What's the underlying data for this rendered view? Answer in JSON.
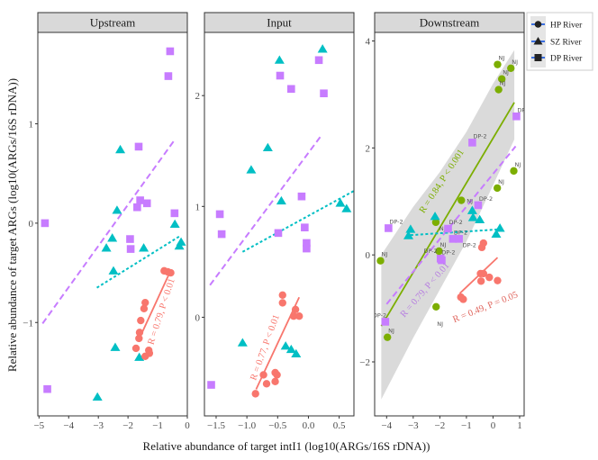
{
  "chart_data": {
    "type": "scatter",
    "xlabel": "Relative abundance of target intI1 (log10(ARGs/16S rDNA))",
    "ylabel": "Relative abundance of target ARGs (log10(ARGs/16S rDNA))",
    "grid": false,
    "legend": {
      "placement": "right",
      "entries": [
        {
          "name": "HP River",
          "marker": "circle"
        },
        {
          "name": "SZ River",
          "marker": "triangle"
        },
        {
          "name": "DP River",
          "marker": "square"
        }
      ]
    },
    "colors": {
      "HP River": "#f8766d",
      "SZ River": "#00bfc4",
      "DP River": "#c77cff",
      "NJ": "#7cae00",
      "ribbon": "#d3d3d3"
    },
    "panels": [
      {
        "title": "Upstream",
        "xlim": [
          -5.04,
          0.0
        ],
        "ylim": [
          -1.94,
          1.92
        ],
        "xticks": [
          "-5",
          "-4",
          "-3",
          "-2",
          "-1",
          "0"
        ],
        "yticks": [
          "-1",
          "0",
          "1"
        ],
        "annotations": [
          {
            "text": "R = 0.79, P < 0.01",
            "color": "#f8766d"
          }
        ],
        "series": [
          {
            "group": "DP River",
            "marker": "square",
            "color": "#c77cff",
            "fit_style": "dashed",
            "points": [
              [
                -0.58,
                1.73
              ],
              [
                -0.64,
                1.48
              ],
              [
                -1.64,
                0.77
              ],
              [
                -1.59,
                0.23
              ],
              [
                -1.36,
                0.2
              ],
              [
                -1.69,
                0.16
              ],
              [
                -0.43,
                0.1
              ],
              [
                -4.8,
                0.0
              ],
              [
                -1.93,
                -0.16
              ],
              [
                -1.91,
                -0.26
              ],
              [
                -4.72,
                -1.67
              ]
            ],
            "fit": [
              [
                -4.88,
                -1.01
              ],
              [
                -0.4,
                0.85
              ]
            ]
          },
          {
            "group": "SZ River",
            "marker": "triangle",
            "color": "#00bfc4",
            "fit_style": "dotted",
            "points": [
              [
                -2.26,
                0.74
              ],
              [
                -2.37,
                0.13
              ],
              [
                -0.42,
                -0.01
              ],
              [
                -2.53,
                -0.15
              ],
              [
                -0.21,
                -0.19
              ],
              [
                -2.73,
                -0.25
              ],
              [
                -1.47,
                -0.25
              ],
              [
                -0.27,
                -0.23
              ],
              [
                -2.49,
                -0.48
              ],
              [
                -2.43,
                -1.25
              ],
              [
                -1.62,
                -1.35
              ],
              [
                -3.03,
                -1.75
              ]
            ],
            "fit": [
              [
                -3.05,
                -0.65
              ],
              [
                -0.25,
                -0.13
              ]
            ]
          },
          {
            "group": "HP River",
            "marker": "circle",
            "color": "#f8766d",
            "fit_style": "solid",
            "points": [
              [
                -0.78,
                -0.48
              ],
              [
                -0.66,
                -0.49
              ],
              [
                -0.56,
                -0.5
              ],
              [
                -1.42,
                -0.8
              ],
              [
                -1.46,
                -0.86
              ],
              [
                -1.57,
                -0.98
              ],
              [
                -1.61,
                -1.1
              ],
              [
                -1.63,
                -1.16
              ],
              [
                -1.73,
                -1.26
              ],
              [
                -1.3,
                -1.28
              ],
              [
                -1.28,
                -1.31
              ],
              [
                -1.42,
                -1.34
              ]
            ],
            "fit": [
              [
                -1.6,
                -1.15
              ],
              [
                -0.55,
                -0.47
              ]
            ]
          }
        ]
      },
      {
        "title": "Input",
        "xlim": [
          -1.69,
          0.74
        ],
        "ylim": [
          -0.89,
          2.57
        ],
        "xticks": [
          "-1.5",
          "-1.0",
          "-0.5",
          "0.0",
          "0.5"
        ],
        "yticks": [
          "0",
          "1",
          "2"
        ],
        "annotations": [
          {
            "text": "R = 0.77, P < 0.01",
            "color": "#f8766d"
          }
        ],
        "series": [
          {
            "group": "DP River",
            "marker": "square",
            "color": "#c77cff",
            "fit_style": "dashed",
            "points": [
              [
                0.17,
                2.32
              ],
              [
                -0.46,
                2.18
              ],
              [
                -0.28,
                2.06
              ],
              [
                0.25,
                2.02
              ],
              [
                -0.11,
                1.09
              ],
              [
                -1.44,
                0.93
              ],
              [
                -1.41,
                0.75
              ],
              [
                -0.49,
                0.76
              ],
              [
                -0.06,
                0.81
              ],
              [
                -0.03,
                0.67
              ],
              [
                -0.03,
                0.62
              ],
              [
                -1.58,
                -0.61
              ]
            ],
            "fit": [
              [
                -1.6,
                0.29
              ],
              [
                0.21,
                1.64
              ]
            ]
          },
          {
            "group": "SZ River",
            "marker": "triangle",
            "color": "#00bfc4",
            "fit_style": "dotted",
            "points": [
              [
                0.23,
                2.42
              ],
              [
                -0.47,
                2.32
              ],
              [
                -0.66,
                1.53
              ],
              [
                -0.93,
                1.33
              ],
              [
                -0.44,
                1.05
              ],
              [
                0.52,
                1.03
              ],
              [
                0.62,
                0.98
              ],
              [
                -1.07,
                -0.23
              ],
              [
                -0.37,
                -0.26
              ],
              [
                -0.28,
                -0.29
              ],
              [
                -0.2,
                -0.33
              ]
            ],
            "fit": [
              [
                -1.07,
                0.59
              ],
              [
                0.74,
                1.14
              ]
            ]
          },
          {
            "group": "HP River",
            "marker": "circle",
            "color": "#f8766d",
            "fit_style": "solid",
            "points": [
              [
                -0.42,
                0.2
              ],
              [
                -0.42,
                0.13
              ],
              [
                -0.21,
                0.07
              ],
              [
                -0.24,
                0.01
              ],
              [
                -0.15,
                0.01
              ],
              [
                -0.73,
                -0.52
              ],
              [
                -0.54,
                -0.5
              ],
              [
                -0.51,
                -0.52
              ],
              [
                -0.54,
                -0.58
              ],
              [
                -0.68,
                -0.6
              ],
              [
                -0.86,
                -0.69
              ]
            ],
            "fit": [
              [
                -0.85,
                -0.65
              ],
              [
                -0.15,
                0.18
              ]
            ]
          }
        ]
      },
      {
        "title": "Downstream",
        "xlim": [
          -4.45,
          1.17
        ],
        "ylim": [
          -3.01,
          4.16
        ],
        "xticks": [
          "-4",
          "-3",
          "-2",
          "-1",
          "0",
          "1"
        ],
        "yticks": [
          "-2",
          "0",
          "2",
          "4"
        ],
        "annotations": [
          {
            "text": "R = 0.84, P < 0.001",
            "color": "#7cae00"
          },
          {
            "text": "R = 0.79, P < 0.01",
            "color": "#b77fe0"
          },
          {
            "text": "R = 0.49, P = 0.05",
            "color": "#e0665e"
          }
        ],
        "ribbon": {
          "x": [
            -4.2,
            -3.0,
            -2.0,
            -1.0,
            0.0,
            0.8
          ],
          "upper": [
            0.0,
            0.9,
            1.55,
            2.3,
            3.2,
            3.83
          ],
          "lower": [
            -2.7,
            -1.55,
            -0.65,
            0.25,
            1.3,
            2.16
          ]
        },
        "series": [
          {
            "group": "NJ",
            "marker": "circle",
            "color": "#7cae00",
            "fit_style": "solid",
            "points": [
              [
                0.17,
                3.56,
                "NJ"
              ],
              [
                0.67,
                3.49,
                "NJ"
              ],
              [
                0.33,
                3.29,
                "NJ"
              ],
              [
                0.21,
                3.09,
                "NJ"
              ],
              [
                0.78,
                1.57,
                "NJ"
              ],
              [
                0.16,
                1.25,
                "NJ"
              ],
              [
                -1.19,
                1.02,
                "NJ"
              ],
              [
                -2.15,
                0.61,
                "NJ"
              ],
              [
                -2.03,
                0.07,
                "NJ"
              ],
              [
                -4.23,
                -0.11,
                "NJ"
              ],
              [
                -2.14,
                -0.97,
                "NJ"
              ],
              [
                -3.97,
                -1.54,
                "NJ"
              ]
            ],
            "fit": [
              [
                -4.2,
                -1.33
              ],
              [
                0.8,
                2.85
              ]
            ]
          },
          {
            "group": "DP River",
            "marker": "square",
            "color": "#c77cff",
            "fit_style": "dashed",
            "points": [
              [
                0.88,
                2.59,
                "DP-2"
              ],
              [
                -0.78,
                2.1,
                "DP-2"
              ],
              [
                -0.56,
                0.93,
                "DP-2"
              ],
              [
                -3.93,
                0.5,
                "DP-2"
              ],
              [
                -1.69,
                0.49,
                "DP-2"
              ],
              [
                -1.51,
                0.3,
                "DP-2"
              ],
              [
                -1.28,
                0.3,
                "DP-2"
              ],
              [
                -1.97,
                -0.07,
                "DP-2"
              ],
              [
                -1.93,
                -0.1,
                "DP-2"
              ],
              [
                -4.05,
                -1.25,
                "DP-2"
              ]
            ],
            "fit": [
              [
                -4.0,
                -0.92
              ],
              [
                0.85,
                2.03
              ]
            ]
          },
          {
            "group": "SZ River",
            "marker": "triangle",
            "color": "#00bfc4",
            "fit_style": "dotted",
            "points": [
              [
                -3.1,
                0.48
              ],
              [
                -3.18,
                0.36
              ],
              [
                -2.18,
                0.72
              ],
              [
                -0.78,
                0.83
              ],
              [
                -0.75,
                0.7
              ],
              [
                -0.5,
                0.66
              ],
              [
                0.26,
                0.5
              ],
              [
                0.12,
                0.39
              ]
            ],
            "fit": [
              [
                -3.1,
                0.37
              ],
              [
                0.3,
                0.48
              ]
            ]
          },
          {
            "group": "HP River",
            "marker": "circle",
            "color": "#f8766d",
            "fit_style": "solid",
            "points": [
              [
                -0.36,
                0.22
              ],
              [
                -0.42,
                0.14
              ],
              [
                -0.47,
                -0.35
              ],
              [
                -0.36,
                -0.35
              ],
              [
                -0.45,
                -0.49
              ],
              [
                -0.14,
                -0.42
              ],
              [
                0.17,
                -0.48
              ],
              [
                -1.21,
                -0.79
              ],
              [
                -1.12,
                -0.83
              ]
            ],
            "fit": [
              [
                -1.25,
                -0.72
              ],
              [
                0.17,
                -0.05
              ]
            ]
          }
        ]
      }
    ]
  }
}
